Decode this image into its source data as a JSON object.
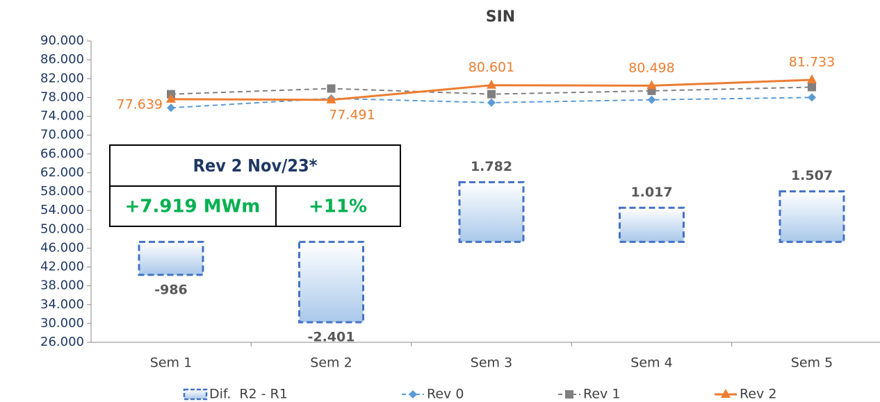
{
  "chart_data": {
    "type": "line",
    "title": "SIN",
    "categories": [
      "Sem 1",
      "Sem 2",
      "Sem 3",
      "Sem 4",
      "Sem 5"
    ],
    "ylim": [
      26000,
      90000
    ],
    "yticks": [
      {
        "value": 26000,
        "label": "26.000"
      },
      {
        "value": 30000,
        "label": "30.000"
      },
      {
        "value": 34000,
        "label": "34.000"
      },
      {
        "value": 38000,
        "label": "38.000"
      },
      {
        "value": 42000,
        "label": "42.000"
      },
      {
        "value": 46000,
        "label": "46.000"
      },
      {
        "value": 50000,
        "label": "50.000"
      },
      {
        "value": 54000,
        "label": "54.000"
      },
      {
        "value": 58000,
        "label": "58.000"
      },
      {
        "value": 62000,
        "label": "62.000"
      },
      {
        "value": 66000,
        "label": "66.000"
      },
      {
        "value": 70000,
        "label": "70.000"
      },
      {
        "value": 74000,
        "label": "74.000"
      },
      {
        "value": 78000,
        "label": "78.000"
      },
      {
        "value": 82000,
        "label": "82.000"
      },
      {
        "value": 86000,
        "label": "86.000"
      },
      {
        "value": 90000,
        "label": "90.000"
      }
    ],
    "y2lim": [
      -3000,
      6000
    ],
    "series": [
      {
        "name": "Dif.  R2 - R1",
        "type": "bar",
        "axis": "y2",
        "color": "#4472c4",
        "values": [
          -986,
          -2401,
          1782,
          1017,
          1507
        ],
        "value_labels": [
          "-986",
          "-2.401",
          "1.782",
          "1.017",
          "1.507"
        ]
      },
      {
        "name": "Rev 0",
        "type": "line",
        "color": "#5b9bd5",
        "marker": "diamond",
        "dashed": true,
        "values": [
          75800,
          77800,
          76900,
          77500,
          78000
        ]
      },
      {
        "name": "Rev 1",
        "type": "line",
        "color": "#808080",
        "marker": "square",
        "dashed": true,
        "values": [
          78700,
          79900,
          78700,
          79400,
          80200
        ]
      },
      {
        "name": "Rev 2",
        "type": "line",
        "color": "#ed7d31",
        "marker": "triangle",
        "dashed": false,
        "values": [
          77639,
          77491,
          80601,
          80498,
          81733
        ],
        "value_labels": [
          "77.639",
          "77.491",
          "80.601",
          "80.498",
          "81.733"
        ]
      }
    ],
    "annotation": {
      "title": "Rev 2 Nov/23*",
      "cells": [
        "+7.919 MWm",
        "+11%"
      ]
    }
  }
}
